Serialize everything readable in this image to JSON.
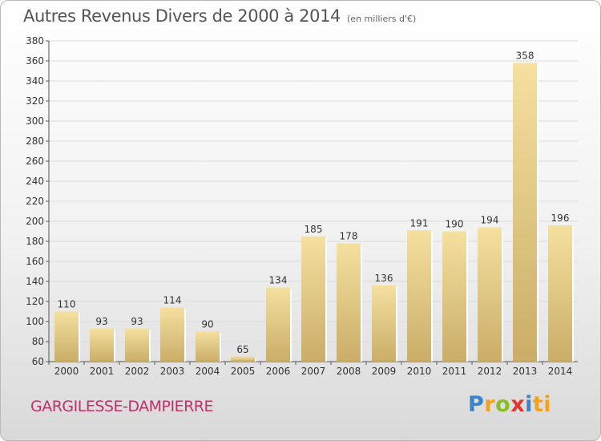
{
  "header": {
    "title": "Autres Revenus Divers de 2000 à 2014",
    "unit": "(en milliers d'€)"
  },
  "footer": {
    "commune": "GARGILESSE-DAMPIERRE",
    "logo_letters": [
      "P",
      "r",
      "o",
      "x",
      "i",
      "ti"
    ]
  },
  "colors": {
    "bar_top": "#f5e0a0",
    "bar_bottom": "#c9ad68",
    "commune_text": "#c0306a",
    "grid": "#dcdcdc"
  },
  "chart_data": {
    "type": "bar",
    "title": "Autres Revenus Divers de 2000 à 2014",
    "subtitle": "(en milliers d'€)",
    "categories": [
      "2000",
      "2001",
      "2002",
      "2003",
      "2004",
      "2005",
      "2006",
      "2007",
      "2008",
      "2009",
      "2010",
      "2011",
      "2012",
      "2013",
      "2014"
    ],
    "values": [
      110,
      93,
      93,
      114,
      90,
      65,
      134,
      185,
      178,
      136,
      191,
      190,
      194,
      358,
      196
    ],
    "ylim": [
      60,
      380
    ],
    "yticks": [
      60,
      80,
      100,
      120,
      140,
      160,
      180,
      200,
      220,
      240,
      260,
      280,
      300,
      320,
      340,
      360,
      380
    ],
    "grid": true,
    "legend": "none"
  }
}
